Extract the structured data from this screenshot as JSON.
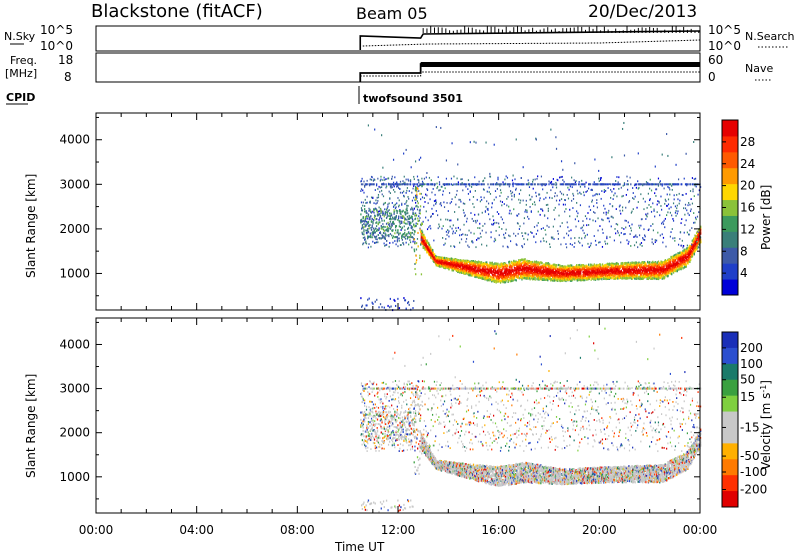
{
  "header": {
    "title": "Blackstone (fitACF)",
    "beam": "Beam 05",
    "date": "20/Dec/2013"
  },
  "param_panels": {
    "nsky": {
      "label": "N.Sky",
      "left_ticks": [
        "10^5",
        "10^0"
      ]
    },
    "nsearch": {
      "label": "N.Search",
      "right_ticks": [
        "10^5",
        "10^0"
      ]
    },
    "freq": {
      "label_lines": [
        "Freq.",
        "[MHz]"
      ],
      "ticks": [
        "18",
        "8"
      ]
    },
    "nave": {
      "label": "Nave",
      "ticks": [
        "60",
        "0"
      ]
    },
    "cpid": {
      "label": "CPID",
      "program": "twofsound 3501"
    }
  },
  "colors": {
    "power_scale": [
      "#0000d8",
      "#1f3fc8",
      "#3d5aa8",
      "#3a7f7a",
      "#3c9a5e",
      "#8ac23a",
      "#ffd700",
      "#ff9a00",
      "#ff5a00",
      "#ff2a00",
      "#e60000"
    ],
    "velocity_scale": [
      "#1a2fb8",
      "#2b4fd0",
      "#1a7a6a",
      "#3aa040",
      "#7fd040",
      "#c8c8c8",
      "#c8c8c8",
      "#ffb000",
      "#ff7a00",
      "#ff3000",
      "#e00000"
    ]
  },
  "chart_data": [
    {
      "type": "heatmap",
      "title": "",
      "xlabel": "Time UT",
      "ylabel": "Slant Range [km]",
      "x_ticks": [
        "00:00",
        "04:00",
        "08:00",
        "12:00",
        "16:00",
        "20:00",
        "00:00"
      ],
      "xlim_hours": [
        0,
        24
      ],
      "y_ticks": [
        1000,
        2000,
        3000,
        4000
      ],
      "ylim": [
        180,
        4600
      ],
      "colorbar": {
        "label": "Power [dB]",
        "ticks": [
          4,
          8,
          12,
          16,
          20,
          24,
          28
        ],
        "range": [
          0,
          32
        ]
      },
      "echo_band": {
        "start_hour": 10.5,
        "end_hour": 24,
        "lower_edge_km": [
          [
            12.9,
            1650
          ],
          [
            13.5,
            1200
          ],
          [
            15.0,
            950
          ],
          [
            16.0,
            800
          ],
          [
            17.0,
            900
          ],
          [
            18.5,
            850
          ],
          [
            20.5,
            900
          ],
          [
            22.5,
            900
          ],
          [
            23.5,
            1200
          ],
          [
            24,
            1700
          ]
        ],
        "upper_edge_km": [
          [
            12.9,
            2000
          ],
          [
            13.5,
            1400
          ],
          [
            15.0,
            1300
          ],
          [
            16.0,
            1250
          ],
          [
            17.0,
            1350
          ],
          [
            18.5,
            1200
          ],
          [
            20.5,
            1250
          ],
          [
            22.5,
            1300
          ],
          [
            23.5,
            1600
          ],
          [
            24,
            2100
          ]
        ],
        "peak_db": 30
      }
    },
    {
      "type": "heatmap",
      "title": "",
      "xlabel": "Time UT",
      "ylabel": "Slant Range [km]",
      "x_ticks": [
        "00:00",
        "04:00",
        "08:00",
        "12:00",
        "16:00",
        "20:00",
        "00:00"
      ],
      "xlim_hours": [
        0,
        24
      ],
      "y_ticks": [
        1000,
        2000,
        3000,
        4000
      ],
      "ylim": [
        180,
        4600
      ],
      "colorbar": {
        "label": "Velocity [m s-1]",
        "ticks": [
          200,
          100,
          50,
          15,
          -15,
          -50,
          -100,
          -200
        ],
        "range": [
          -250,
          250
        ]
      },
      "echo_band": {
        "start_hour": 10.5,
        "end_hour": 24,
        "dominant_velocity": "ground scatter (±15 m/s, grey)"
      }
    }
  ]
}
